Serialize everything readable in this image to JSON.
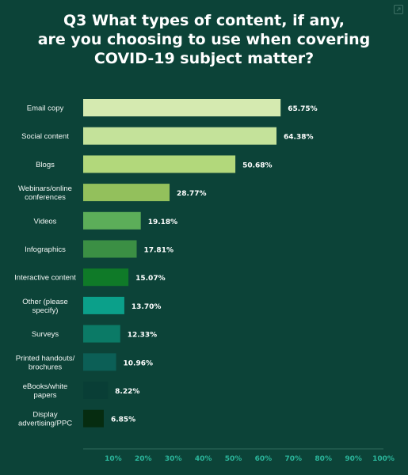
{
  "chart_data": {
    "type": "bar",
    "orientation": "horizontal",
    "title_lines": [
      "Q3 What types of content, if any,",
      "are you choosing to use when covering",
      "COVID-19 subject matter?"
    ],
    "categories": [
      [
        "Email copy"
      ],
      [
        "Social content"
      ],
      [
        "Blogs"
      ],
      [
        "Webinars/online",
        "conferences"
      ],
      [
        "Videos"
      ],
      [
        "Infographics"
      ],
      [
        "Interactive content"
      ],
      [
        "Other (please",
        "specify)"
      ],
      [
        "Surveys"
      ],
      [
        "Printed handouts/",
        "brochures"
      ],
      [
        "eBooks/white",
        "papers"
      ],
      [
        "Display",
        "advertising/PPC"
      ]
    ],
    "values": [
      65.75,
      64.38,
      50.68,
      28.77,
      19.18,
      17.81,
      15.07,
      13.7,
      12.33,
      10.96,
      8.22,
      6.85
    ],
    "value_labels": [
      "65.75%",
      "64.38%",
      "50.68%",
      "28.77%",
      "19.18%",
      "17.81%",
      "15.07%",
      "13.70%",
      "12.33%",
      "10.96%",
      "8.22%",
      "6.85%"
    ],
    "bar_colors": [
      "#d5eab0",
      "#c4e29a",
      "#b2d87b",
      "#93c05c",
      "#5cae59",
      "#3b8f44",
      "#0f7a28",
      "#0ba08a",
      "#0b7a66",
      "#0c5f56",
      "#093e36",
      "#062c10"
    ],
    "x_ticks": [
      10,
      20,
      30,
      40,
      50,
      60,
      70,
      80,
      90,
      100
    ],
    "x_tick_labels": [
      "10%",
      "20%",
      "30%",
      "40%",
      "50%",
      "60%",
      "70%",
      "80%",
      "90%",
      "100%"
    ],
    "xlim": [
      0,
      100
    ],
    "grid": false,
    "legend": "none",
    "colors": {
      "background": "#0c4338",
      "text": "#ffffff",
      "category_text": "#f2f6f4",
      "tick_text": "#2ab59a",
      "axis_line": "#2f6b5c"
    }
  },
  "ui": {
    "corner_icon": "expand-icon"
  }
}
